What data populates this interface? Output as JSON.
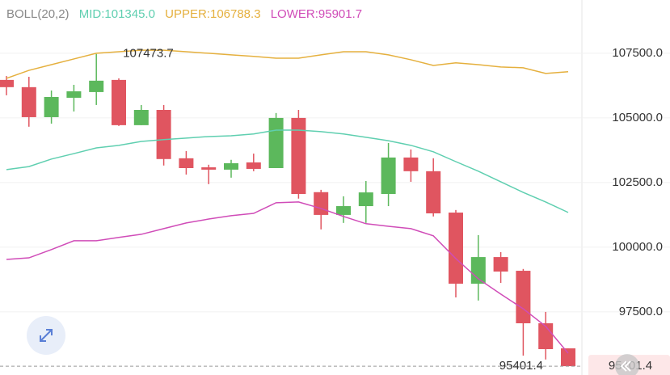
{
  "chart_data": {
    "type": "candlestick",
    "indicator": "BOLL(20,2)",
    "open": [
      106470,
      106190,
      105030,
      105780,
      106000,
      106470,
      104720,
      105310,
      103440,
      103090,
      103000,
      103280,
      103060,
      105000,
      102130,
      101250,
      101590,
      102060,
      103470,
      102940,
      101340,
      98590,
      99620,
      99090,
      97060,
      96090
    ],
    "high": [
      106620,
      106590,
      106060,
      106280,
      107473.7,
      106530,
      105500,
      105500,
      103720,
      103190,
      103380,
      103620,
      105190,
      105310,
      102220,
      101970,
      102560,
      104030,
      103780,
      103440,
      101440,
      100470,
      99810,
      99160,
      97500,
      96090
    ],
    "low": [
      105875,
      104660,
      104780,
      105250,
      105500,
      104690,
      104720,
      103160,
      102810,
      102440,
      102690,
      102940,
      103060,
      101880,
      100690,
      100940,
      100940,
      101590,
      102530,
      101190,
      98060,
      97940,
      98620,
      95810,
      95660,
      95401.4
    ],
    "close": [
      106190,
      105030,
      105810,
      106030,
      106440,
      104720,
      105310,
      103410,
      103060,
      103000,
      103250,
      103030,
      105000,
      102060,
      101250,
      101590,
      102120,
      103470,
      102940,
      101310,
      98590,
      99620,
      99060,
      97060,
      96060,
      95401.4
    ],
    "up_color": "#5cb85c",
    "down_color": "#e05560",
    "series": [
      {
        "name": "MID",
        "legend_label": "MID:101345.0",
        "color": "#5fcfb0",
        "values": [
          103000,
          103120,
          103410,
          103620,
          103840,
          103940,
          104090,
          104160,
          104220,
          104280,
          104310,
          104380,
          104530,
          104530,
          104470,
          104380,
          104250,
          104120,
          103940,
          103690,
          103310,
          102940,
          102530,
          102120,
          101750,
          101345.0
        ]
      },
      {
        "name": "UPPER",
        "legend_label": "UPPER:106788.3",
        "color": "#e5b03e",
        "values": [
          106530,
          106840,
          107060,
          107280,
          107500,
          107560,
          107620,
          107620,
          107560,
          107500,
          107440,
          107380,
          107310,
          107310,
          107440,
          107560,
          107560,
          107440,
          107250,
          107030,
          107130,
          107060,
          106970,
          106940,
          106720,
          106788.3
        ]
      },
      {
        "name": "LOWER",
        "legend_label": "LOWER:95901.7",
        "color": "#d04cb8",
        "values": [
          99530,
          99590,
          99910,
          100250,
          100250,
          100380,
          100500,
          100720,
          100940,
          101090,
          101220,
          101310,
          101720,
          101750,
          101500,
          101190,
          100910,
          100810,
          100720,
          100440,
          99560,
          98780,
          98190,
          97620,
          96940,
          95901.7
        ]
      }
    ],
    "max_label": {
      "value": 107473.7,
      "label": "107473.7"
    },
    "last_price": {
      "value": 95401.4,
      "label": "95401.4"
    },
    "ylim": [
      95060,
      109560
    ],
    "yticks": [
      {
        "value": 97500,
        "label": "97500.0"
      },
      {
        "value": 100000,
        "label": "100000.0"
      },
      {
        "value": 102500,
        "label": "102500.0"
      },
      {
        "value": 105000,
        "label": "105000.0"
      },
      {
        "value": 107500,
        "label": "107500.0"
      }
    ],
    "grid": true
  }
}
